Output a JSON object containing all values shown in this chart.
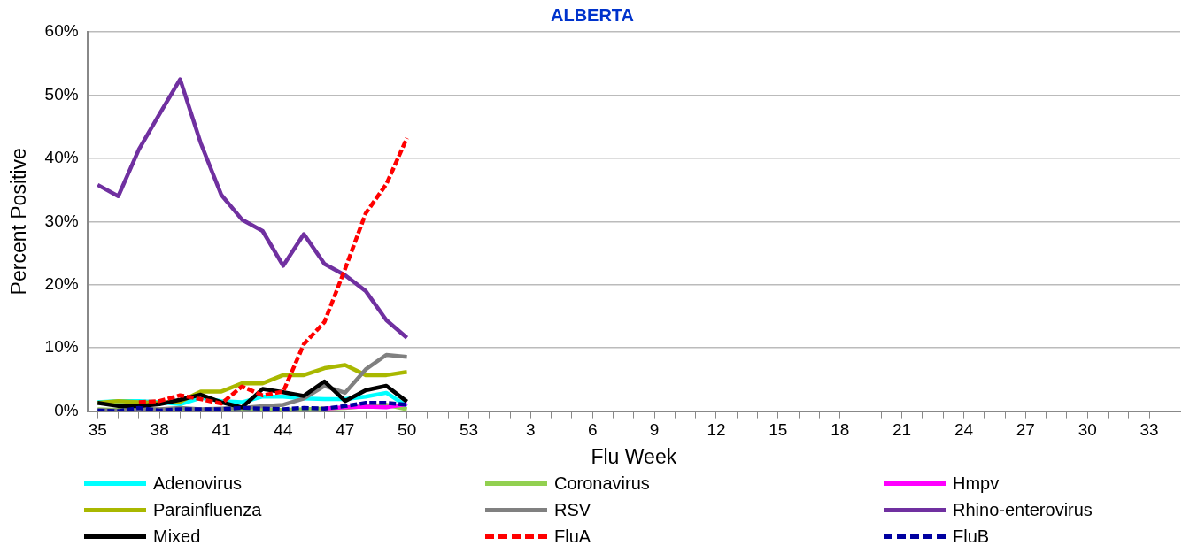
{
  "chart_data": {
    "type": "line",
    "title": "ALBERTA",
    "xlabel": "Flu Week",
    "ylabel": "Percent Positive",
    "categories": [
      "35",
      null,
      null,
      "38",
      null,
      null,
      "41",
      null,
      null,
      "44",
      null,
      null,
      "47",
      null,
      null,
      "50",
      null,
      null,
      "53",
      null,
      null,
      "3",
      null,
      null,
      "6",
      null,
      null,
      "9",
      null,
      null,
      "12",
      null,
      null,
      "15",
      null,
      null,
      "18",
      null,
      null,
      "21",
      null,
      null,
      "24",
      null,
      null,
      "27",
      null,
      null,
      "30",
      null,
      null,
      "33",
      null
    ],
    "ylim": [
      0,
      60
    ],
    "yticks": [
      {
        "value": 0,
        "label": "0%"
      },
      {
        "value": 10,
        "label": "10%"
      },
      {
        "value": 20,
        "label": "20%"
      },
      {
        "value": 30,
        "label": "30%"
      },
      {
        "value": 40,
        "label": "40%"
      },
      {
        "value": 50,
        "label": "50%"
      },
      {
        "value": 60,
        "label": "60%"
      }
    ],
    "grid": "y",
    "legend": "bottom",
    "marker": "none",
    "series": [
      {
        "name": "Adenovirus",
        "color": "#00ffff",
        "line_style": "solid",
        "values": [
          1.4,
          1.6,
          1.6,
          1.4,
          1.1,
          2.1,
          1.6,
          1.4,
          2.3,
          2.3,
          2.0,
          1.9,
          1.9,
          2.3,
          2.9,
          0.8,
          null,
          null,
          null,
          null,
          null,
          null,
          null,
          null,
          null,
          null,
          null,
          null,
          null,
          null,
          null,
          null,
          null,
          null,
          null,
          null,
          null,
          null,
          null,
          null,
          null,
          null,
          null,
          null,
          null,
          null,
          null,
          null,
          null,
          null,
          null,
          null,
          null
        ]
      },
      {
        "name": "Coronavirus",
        "color": "#92d050",
        "line_style": "solid",
        "values": [
          0.3,
          0.2,
          0.2,
          0.3,
          0.3,
          0.2,
          0.2,
          0.1,
          0.2,
          0.2,
          0.3,
          0.4,
          0.5,
          0.8,
          1.0,
          0.3,
          null,
          null,
          null,
          null,
          null,
          null,
          null,
          null,
          null,
          null,
          null,
          null,
          null,
          null,
          null,
          null,
          null,
          null,
          null,
          null,
          null,
          null,
          null,
          null,
          null,
          null,
          null,
          null,
          null,
          null,
          null,
          null,
          null,
          null,
          null,
          null,
          null
        ]
      },
      {
        "name": "Hmpv",
        "color": "#ff00ff",
        "line_style": "solid",
        "values": [
          null,
          null,
          null,
          null,
          null,
          null,
          null,
          null,
          null,
          null,
          null,
          0.4,
          0.6,
          0.7,
          0.6,
          1.1,
          null,
          null,
          null,
          null,
          null,
          null,
          null,
          null,
          null,
          null,
          null,
          null,
          null,
          null,
          null,
          null,
          null,
          null,
          null,
          null,
          null,
          null,
          null,
          null,
          null,
          null,
          null,
          null,
          null,
          null,
          null,
          null,
          null,
          null,
          null,
          null,
          null
        ]
      },
      {
        "name": "Parainfluenza",
        "color": "#a9b800",
        "line_style": "solid",
        "values": [
          1.3,
          1.6,
          1.4,
          1.3,
          1.5,
          3.1,
          3.1,
          4.4,
          4.4,
          5.7,
          5.7,
          6.8,
          7.3,
          5.7,
          5.7,
          6.2,
          null,
          null,
          null,
          null,
          null,
          null,
          null,
          null,
          null,
          null,
          null,
          null,
          null,
          null,
          null,
          null,
          null,
          null,
          null,
          null,
          null,
          null,
          null,
          null,
          null,
          null,
          null,
          null,
          null,
          null,
          null,
          null,
          null,
          null,
          null,
          null,
          null
        ]
      },
      {
        "name": "RSV",
        "color": "#808080",
        "line_style": "solid",
        "values": [
          0.2,
          0.1,
          0.3,
          0.3,
          0.5,
          0.3,
          0.4,
          0.5,
          0.8,
          1.0,
          2.0,
          4.0,
          2.9,
          6.6,
          8.9,
          8.6,
          null,
          null,
          null,
          null,
          null,
          null,
          null,
          null,
          null,
          null,
          null,
          null,
          null,
          null,
          null,
          null,
          null,
          null,
          null,
          null,
          null,
          null,
          null,
          null,
          null,
          null,
          null,
          null,
          null,
          null,
          null,
          null,
          null,
          null,
          null,
          null,
          null
        ]
      },
      {
        "name": "Rhino-enterovirus",
        "color": "#7030a0",
        "line_style": "solid",
        "values": [
          35.8,
          34.0,
          41.4,
          47.0,
          52.5,
          42.4,
          34.2,
          30.3,
          28.5,
          23.0,
          28.0,
          23.3,
          21.5,
          19.0,
          14.4,
          11.6,
          null,
          null,
          null,
          null,
          null,
          null,
          null,
          null,
          null,
          null,
          null,
          null,
          null,
          null,
          null,
          null,
          null,
          null,
          null,
          null,
          null,
          null,
          null,
          null,
          null,
          null,
          null,
          null,
          null,
          null,
          null,
          null,
          null,
          null,
          null,
          null,
          null
        ]
      },
      {
        "name": "Mixed",
        "color": "#000000",
        "line_style": "solid",
        "values": [
          1.3,
          0.8,
          0.8,
          1.1,
          1.8,
          2.6,
          1.4,
          0.6,
          3.5,
          3.0,
          2.4,
          4.7,
          1.6,
          3.3,
          4.0,
          1.5,
          null,
          null,
          null,
          null,
          null,
          null,
          null,
          null,
          null,
          null,
          null,
          null,
          null,
          null,
          null,
          null,
          null,
          null,
          null,
          null,
          null,
          null,
          null,
          null,
          null,
          null,
          null,
          null,
          null,
          null,
          null,
          null,
          null,
          null,
          null,
          null,
          null
        ]
      },
      {
        "name": "FluA",
        "color": "#ff0000",
        "line_style": "dashed",
        "values": [
          null,
          null,
          1.4,
          1.6,
          2.5,
          1.9,
          1.2,
          3.9,
          2.5,
          3.1,
          10.6,
          14.1,
          22.5,
          31.3,
          35.9,
          43.2,
          null,
          null,
          null,
          null,
          null,
          null,
          null,
          null,
          null,
          null,
          null,
          null,
          null,
          null,
          null,
          null,
          null,
          null,
          null,
          null,
          null,
          null,
          null,
          null,
          null,
          null,
          null,
          null,
          null,
          null,
          null,
          null,
          null,
          null,
          null,
          null,
          null
        ]
      },
      {
        "name": "FluB",
        "color": "#0000a0",
        "line_style": "dashed",
        "values": [
          0.1,
          0,
          0.5,
          0.1,
          0.3,
          0.3,
          0.3,
          0.5,
          0.4,
          0.3,
          0.5,
          0.4,
          0.8,
          1.3,
          1.3,
          1.0,
          null,
          null,
          null,
          null,
          null,
          null,
          null,
          null,
          null,
          null,
          null,
          null,
          null,
          null,
          null,
          null,
          null,
          null,
          null,
          null,
          null,
          null,
          null,
          null,
          null,
          null,
          null,
          null,
          null,
          null,
          null,
          null,
          null,
          null,
          null,
          null,
          null
        ]
      }
    ]
  }
}
